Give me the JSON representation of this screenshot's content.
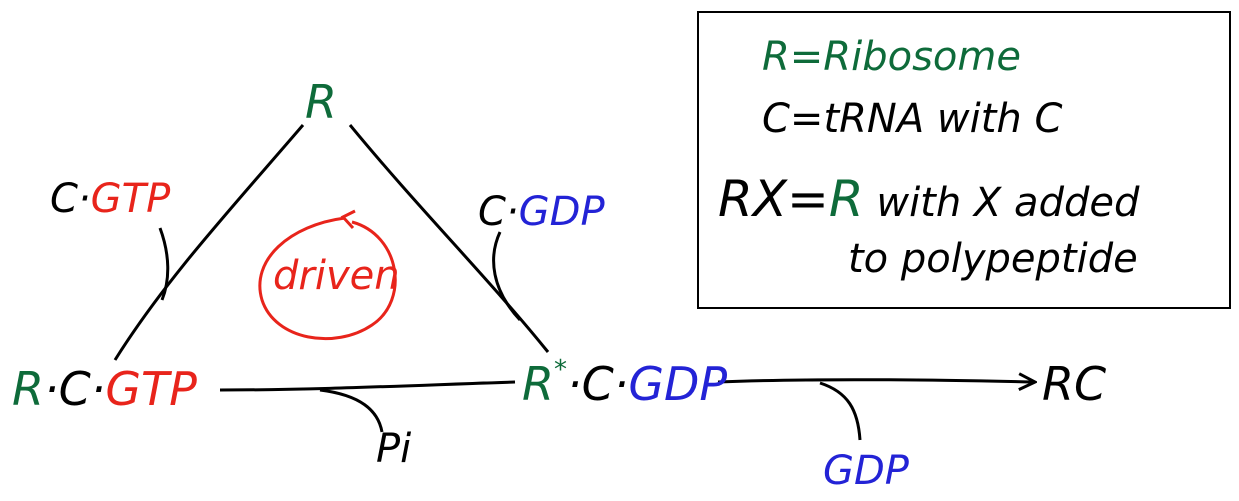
{
  "colors": {
    "ribosome": "#0e6b3a",
    "gtp": "#e8241b",
    "gdp": "#2323d6",
    "ink": "#000000"
  },
  "cycle": {
    "top_node": "R",
    "left_node": {
      "r": "R",
      "c": "·C·",
      "gtp": "GTP"
    },
    "right_node": {
      "r": "R",
      "star": "*",
      "c": "·C·",
      "gdp": "GDP"
    },
    "left_input": {
      "c": "C·",
      "gtp": "GTP"
    },
    "right_output": {
      "c": "C·",
      "gdp": "GDP"
    },
    "center_label": "driven",
    "bottom_release": "Pi",
    "exit_release": "GDP",
    "product": "RC"
  },
  "legend": {
    "line1": "R=Ribosome",
    "line2": "C=tRNA with C",
    "line3_a": "RX=",
    "line3_r": "R",
    "line3_b": " with X added",
    "line4": "to polypeptide"
  }
}
